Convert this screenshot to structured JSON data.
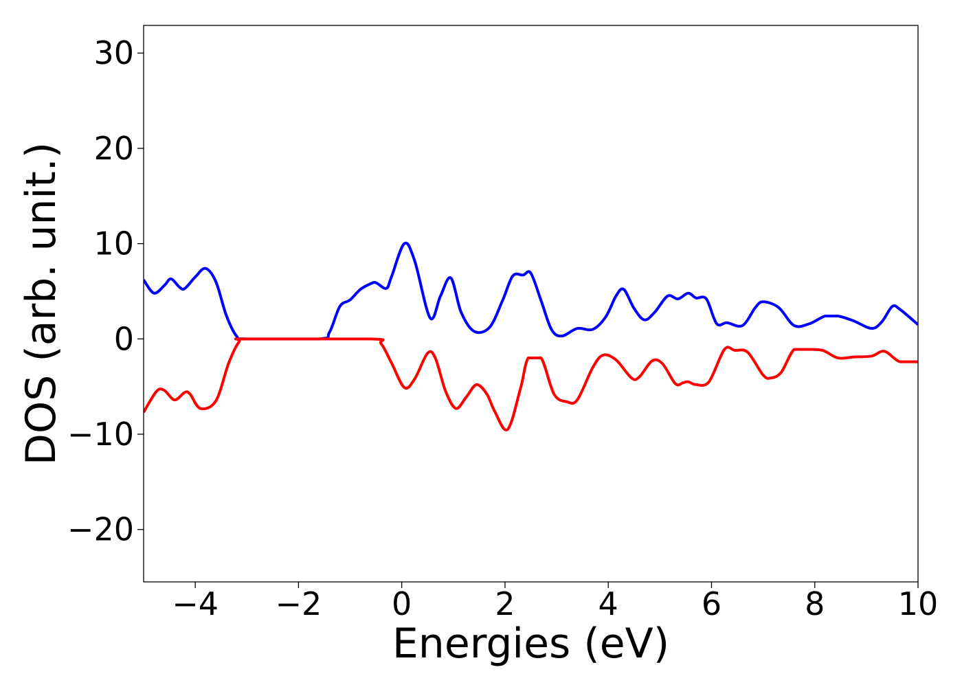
{
  "chart_data": {
    "type": "line",
    "title": "",
    "xlabel": "Energies (eV)",
    "ylabel": "DOS (arb. unit.)",
    "xlim": [
      -5,
      10
    ],
    "ylim": [
      -25.5,
      32.9
    ],
    "x_ticks": [
      -4,
      -2,
      0,
      2,
      4,
      6,
      8,
      10
    ],
    "x_tick_labels": [
      "−4",
      "−2",
      "0",
      "2",
      "4",
      "6",
      "8",
      "10"
    ],
    "y_ticks": [
      -20,
      -10,
      0,
      10,
      20,
      30
    ],
    "y_tick_labels": [
      "−20",
      "−10",
      "0",
      "10",
      "20",
      "30"
    ],
    "grid": false,
    "legend": "none",
    "series": [
      {
        "color": "#0000ff",
        "points": [
          [
            -5.0,
            6.2
          ],
          [
            -4.8,
            4.8
          ],
          [
            -4.6,
            5.6
          ],
          [
            -4.47,
            6.3
          ],
          [
            -4.3,
            5.4
          ],
          [
            -4.2,
            5.3
          ],
          [
            -4.0,
            6.5
          ],
          [
            -3.8,
            7.4
          ],
          [
            -3.6,
            6.0
          ],
          [
            -3.4,
            2.5
          ],
          [
            -3.2,
            0.3
          ],
          [
            -3.0,
            0.0
          ],
          [
            -1.6,
            0.0
          ],
          [
            -1.4,
            0.7
          ],
          [
            -1.2,
            3.4
          ],
          [
            -1.0,
            4.1
          ],
          [
            -0.8,
            5.2
          ],
          [
            -0.6,
            5.8
          ],
          [
            -0.5,
            5.9
          ],
          [
            -0.3,
            5.3
          ],
          [
            -0.2,
            6.5
          ],
          [
            0.05,
            10.0
          ],
          [
            0.25,
            8.2
          ],
          [
            0.55,
            2.2
          ],
          [
            0.75,
            4.5
          ],
          [
            0.95,
            6.4
          ],
          [
            1.15,
            2.8
          ],
          [
            1.4,
            0.8
          ],
          [
            1.7,
            1.2
          ],
          [
            1.95,
            4.0
          ],
          [
            2.15,
            6.6
          ],
          [
            2.35,
            6.7
          ],
          [
            2.5,
            6.9
          ],
          [
            2.7,
            4.0
          ],
          [
            2.9,
            1.0
          ],
          [
            3.1,
            0.3
          ],
          [
            3.4,
            1.1
          ],
          [
            3.7,
            1.0
          ],
          [
            3.95,
            2.3
          ],
          [
            4.15,
            4.5
          ],
          [
            4.3,
            5.2
          ],
          [
            4.5,
            3.2
          ],
          [
            4.7,
            2.0
          ],
          [
            4.9,
            2.8
          ],
          [
            5.15,
            4.5
          ],
          [
            5.35,
            4.2
          ],
          [
            5.55,
            4.8
          ],
          [
            5.7,
            4.3
          ],
          [
            5.9,
            4.2
          ],
          [
            6.1,
            1.6
          ],
          [
            6.3,
            1.7
          ],
          [
            6.6,
            1.4
          ],
          [
            6.85,
            3.3
          ],
          [
            7.0,
            3.9
          ],
          [
            7.3,
            3.3
          ],
          [
            7.6,
            1.4
          ],
          [
            7.9,
            1.6
          ],
          [
            8.2,
            2.4
          ],
          [
            8.45,
            2.4
          ],
          [
            8.75,
            1.9
          ],
          [
            9.1,
            1.1
          ],
          [
            9.3,
            1.8
          ],
          [
            9.5,
            3.4
          ],
          [
            9.65,
            3.1
          ],
          [
            10.0,
            1.5
          ]
        ]
      },
      {
        "color": "#ff0000",
        "points": [
          [
            -5.0,
            -7.7
          ],
          [
            -4.75,
            -5.5
          ],
          [
            -4.6,
            -5.4
          ],
          [
            -4.4,
            -6.4
          ],
          [
            -4.2,
            -5.6
          ],
          [
            -4.1,
            -5.8
          ],
          [
            -3.9,
            -7.3
          ],
          [
            -3.6,
            -6.5
          ],
          [
            -3.35,
            -2.5
          ],
          [
            -3.15,
            -0.3
          ],
          [
            -3.0,
            0.0
          ],
          [
            -0.6,
            0.0
          ],
          [
            -0.4,
            -0.5
          ],
          [
            -0.2,
            -2.5
          ],
          [
            0.05,
            -5.1
          ],
          [
            0.25,
            -4.2
          ],
          [
            0.5,
            -1.5
          ],
          [
            0.65,
            -2.0
          ],
          [
            0.85,
            -5.5
          ],
          [
            1.05,
            -7.3
          ],
          [
            1.25,
            -6.1
          ],
          [
            1.45,
            -4.8
          ],
          [
            1.65,
            -5.8
          ],
          [
            1.8,
            -7.6
          ],
          [
            2.05,
            -9.5
          ],
          [
            2.3,
            -5.2
          ],
          [
            2.45,
            -2.0
          ],
          [
            2.7,
            -2.0
          ],
          [
            2.95,
            -5.8
          ],
          [
            3.2,
            -6.6
          ],
          [
            3.4,
            -6.4
          ],
          [
            3.7,
            -3.0
          ],
          [
            3.9,
            -1.7
          ],
          [
            4.15,
            -2.2
          ],
          [
            4.45,
            -4.1
          ],
          [
            4.6,
            -4.0
          ],
          [
            4.85,
            -2.3
          ],
          [
            5.05,
            -2.6
          ],
          [
            5.3,
            -4.7
          ],
          [
            5.45,
            -4.6
          ],
          [
            5.55,
            -4.5
          ],
          [
            5.7,
            -4.8
          ],
          [
            5.95,
            -4.5
          ],
          [
            6.25,
            -1.1
          ],
          [
            6.45,
            -1.2
          ],
          [
            6.7,
            -1.4
          ],
          [
            7.0,
            -3.8
          ],
          [
            7.15,
            -4.1
          ],
          [
            7.35,
            -3.5
          ],
          [
            7.6,
            -1.1
          ],
          [
            7.85,
            -1.1
          ],
          [
            8.15,
            -1.2
          ],
          [
            8.45,
            -2.0
          ],
          [
            8.75,
            -1.9
          ],
          [
            9.1,
            -1.8
          ],
          [
            9.35,
            -1.3
          ],
          [
            9.65,
            -2.4
          ],
          [
            10.0,
            -2.4
          ]
        ]
      }
    ]
  }
}
